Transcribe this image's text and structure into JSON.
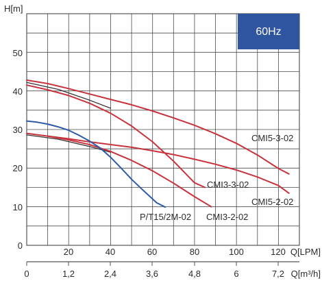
{
  "chart_data": {
    "type": "line",
    "badge": {
      "label": "60Hz",
      "color": "#3055a0"
    },
    "y_axis": {
      "label": "H[m]",
      "ticks": [
        "0",
        "10",
        "20",
        "30",
        "40",
        "50"
      ],
      "ylim": [
        0,
        60
      ]
    },
    "x_axis_lpm": {
      "label": "Q[LPM]",
      "ticks": [
        "20",
        "40",
        "60",
        "80",
        "100",
        "120"
      ],
      "xlim": [
        0,
        130
      ]
    },
    "x_axis_m3h": {
      "label": "Q[m³/h]",
      "ticks": [
        "0",
        "1,2",
        "2,4",
        "3,6",
        "4,8",
        "6",
        "7,2"
      ]
    },
    "grid": true,
    "series": [
      {
        "name": "CMI5-3-02",
        "color": "#c8323c",
        "x": [
          0,
          10,
          20,
          30,
          40,
          50,
          60,
          70,
          80,
          90,
          100,
          110,
          120,
          125
        ],
        "y": [
          42.8,
          41.9,
          40.6,
          39.2,
          37.8,
          36.4,
          34.8,
          33.0,
          31.1,
          28.9,
          26.4,
          23.4,
          19.9,
          18.5
        ]
      },
      {
        "name": "CMI3-3-02",
        "color": "#c8323c",
        "x": [
          0,
          10,
          20,
          30,
          40,
          50,
          60,
          70,
          80,
          85
        ],
        "y": [
          41.5,
          40.3,
          38.8,
          36.8,
          34.2,
          30.9,
          26.8,
          21.8,
          16.2,
          15.0
        ]
      },
      {
        "name": "CMI5-2-02",
        "color": "#c8323c",
        "x": [
          10,
          20,
          30,
          40,
          50,
          60,
          70,
          80,
          90,
          100,
          110,
          120,
          125
        ],
        "y": [
          28.3,
          27.6,
          26.8,
          26.1,
          25.4,
          24.5,
          23.5,
          22.3,
          21.0,
          19.5,
          17.7,
          15.5,
          13.5
        ]
      },
      {
        "name": "CMI3-2-02",
        "color": "#c8323c",
        "x": [
          0,
          10,
          20,
          30,
          40,
          50,
          60,
          70,
          80,
          88
        ],
        "y": [
          29.0,
          28.3,
          27.3,
          26.1,
          24.3,
          22.0,
          19.3,
          16.1,
          12.6,
          10.0
        ]
      },
      {
        "name": "P/T15/2M-02",
        "color": "#2c5aa8",
        "x": [
          0,
          5,
          10,
          15,
          20,
          25,
          30,
          35,
          40,
          45,
          50,
          55,
          60,
          62,
          66
        ],
        "y": [
          32.2,
          31.9,
          31.4,
          30.7,
          29.8,
          28.5,
          27.0,
          25.2,
          22.8,
          20.0,
          17.1,
          14.5,
          12.0,
          11.0,
          9.9
        ]
      },
      {
        "name": "",
        "color": "#333333",
        "x": [
          0,
          15,
          30,
          40
        ],
        "y": [
          42.2,
          40.4,
          37.6,
          35.5
        ]
      },
      {
        "name": "",
        "color": "#333333",
        "x": [
          0,
          15,
          30,
          40
        ],
        "y": [
          28.6,
          27.5,
          25.6,
          24.1
        ]
      }
    ]
  }
}
